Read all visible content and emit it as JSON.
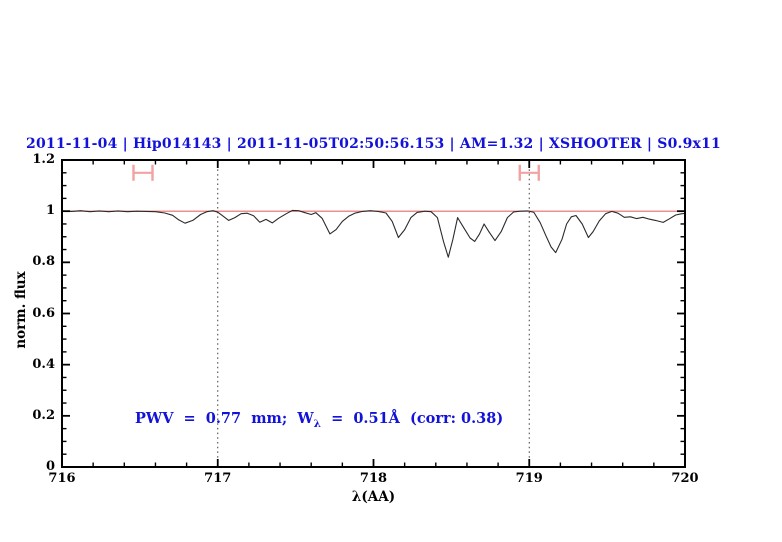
{
  "title": {
    "text": "2011-11-04 | Hip014143 | 2011-11-05T02:50:56.153 | AM=1.32 | XSHOOTER | S0.9x11"
  },
  "annotation": {
    "prefix": "PWV  =  0.77  mm;  W",
    "subscript": "λ",
    "suffix": "  =  0.51Å  (corr: 0.38)"
  },
  "colors": {
    "text_blue": "#1212d8",
    "continuum_red": "#e96a6a",
    "marker_pink": "#f2a2a2",
    "spectrum": "#2b2b2b",
    "dotted": "#3c3c3c",
    "frame": "#000000"
  },
  "chart_data": {
    "type": "line",
    "title": "2011-11-04 | Hip014143 | 2011-11-05T02:50:56.153 | AM=1.32 | XSHOOTER | S0.9x11",
    "xlabel": "λ(AA)",
    "ylabel": "norm. flux",
    "xlim": [
      716,
      720
    ],
    "ylim": [
      0,
      1.2
    ],
    "grid": false,
    "x_ticks": [
      {
        "v": 716,
        "label": "716"
      },
      {
        "v": 717,
        "label": "717"
      },
      {
        "v": 718,
        "label": "718"
      },
      {
        "v": 719,
        "label": "719"
      },
      {
        "v": 720,
        "label": "720"
      }
    ],
    "y_ticks": [
      {
        "v": 0,
        "label": "0"
      },
      {
        "v": 0.2,
        "label": "0.2"
      },
      {
        "v": 0.4,
        "label": "0.4"
      },
      {
        "v": 0.6,
        "label": "0.6"
      },
      {
        "v": 0.8,
        "label": "0.8"
      },
      {
        "v": 1,
        "label": "1"
      },
      {
        "v": 1.2,
        "label": "1.2"
      }
    ],
    "x_minor_step": 0.2,
    "y_minor_step": 0.05,
    "vlines": [
      {
        "x": 717,
        "style": "dotted"
      },
      {
        "x": 719,
        "style": "dotted"
      }
    ],
    "range_markers": [
      {
        "x_center": 716.52,
        "half_width": 0.061,
        "y": 1.15
      },
      {
        "x_center": 719.0,
        "half_width": 0.061,
        "y": 1.15
      }
    ],
    "series": [
      {
        "name": "continuum",
        "type": "hline",
        "y_const": 1.0
      },
      {
        "name": "spectrum",
        "type": "line",
        "x": [
          716.0,
          716.06,
          716.12,
          716.18,
          716.24,
          716.3,
          716.36,
          716.42,
          716.48,
          716.54,
          716.6,
          716.66,
          716.71,
          716.75,
          716.79,
          716.84,
          716.89,
          716.93,
          716.97,
          717.0,
          717.04,
          717.07,
          717.11,
          717.15,
          717.19,
          717.23,
          717.27,
          717.31,
          717.35,
          717.39,
          717.44,
          717.48,
          717.52,
          717.56,
          717.6,
          717.63,
          717.67,
          717.72,
          717.76,
          717.8,
          717.84,
          717.88,
          717.93,
          717.98,
          718.03,
          718.08,
          718.12,
          718.16,
          718.2,
          718.24,
          718.28,
          718.33,
          718.37,
          718.41,
          718.45,
          718.48,
          718.51,
          718.54,
          718.58,
          718.62,
          718.65,
          718.68,
          718.71,
          718.74,
          718.78,
          718.82,
          718.86,
          718.9,
          718.94,
          718.99,
          719.03,
          719.07,
          719.11,
          719.14,
          719.17,
          719.21,
          719.24,
          719.27,
          719.3,
          719.34,
          719.38,
          719.41,
          719.45,
          719.49,
          719.53,
          719.57,
          719.61,
          719.65,
          719.69,
          719.73,
          719.77,
          719.81,
          719.86,
          719.9,
          719.94,
          719.98,
          720.0
        ],
        "y": [
          1.001,
          0.999,
          1.002,
          0.998,
          1.001,
          0.998,
          1.001,
          0.998,
          1.0,
          0.999,
          0.998,
          0.993,
          0.984,
          0.966,
          0.953,
          0.964,
          0.987,
          0.998,
          1.002,
          0.996,
          0.978,
          0.964,
          0.975,
          0.99,
          0.992,
          0.982,
          0.957,
          0.968,
          0.954,
          0.972,
          0.99,
          1.003,
          1.002,
          0.994,
          0.987,
          0.994,
          0.972,
          0.911,
          0.928,
          0.96,
          0.98,
          0.992,
          0.999,
          1.002,
          0.999,
          0.993,
          0.96,
          0.897,
          0.928,
          0.975,
          0.995,
          1.0,
          0.998,
          0.975,
          0.88,
          0.82,
          0.89,
          0.975,
          0.935,
          0.895,
          0.882,
          0.91,
          0.95,
          0.92,
          0.885,
          0.92,
          0.975,
          0.997,
          1.0,
          1.001,
          0.995,
          0.955,
          0.9,
          0.86,
          0.838,
          0.89,
          0.95,
          0.978,
          0.983,
          0.95,
          0.897,
          0.92,
          0.962,
          0.99,
          0.999,
          0.992,
          0.976,
          0.978,
          0.971,
          0.976,
          0.969,
          0.964,
          0.956,
          0.97,
          0.985,
          0.99,
          0.991
        ]
      }
    ]
  }
}
